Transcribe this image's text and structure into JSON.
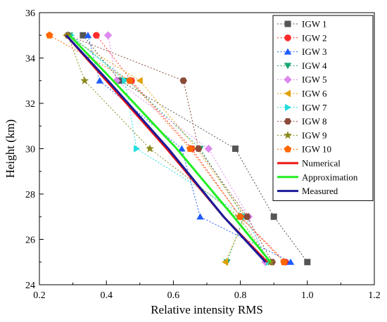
{
  "chart_data": {
    "type": "line",
    "xlabel": "Relative intensity RMS",
    "ylabel": "Height (km)",
    "xlim": [
      0.2,
      1.2
    ],
    "ylim": [
      24,
      36
    ],
    "xticks": [
      "0.2",
      "0.4",
      "0.6",
      "0.8",
      "1.0",
      "1.2"
    ],
    "yticks": [
      "24",
      "26",
      "28",
      "30",
      "32",
      "34",
      "36"
    ],
    "grid": false,
    "legend_position": "top-right",
    "heights": [
      35,
      33,
      30,
      27,
      25
    ],
    "series": [
      {
        "name": "IGW 1",
        "x": [
          0.33,
          0.44,
          0.785,
          0.9,
          1.0
        ],
        "y": [
          35,
          33,
          30,
          27,
          25
        ],
        "color": "#555555",
        "marker": "square"
      },
      {
        "name": "IGW 2",
        "x": [
          0.37,
          0.475,
          0.655,
          0.8,
          0.935
        ],
        "y": [
          35,
          33,
          30,
          27,
          25
        ],
        "color": "#ff2b2b",
        "marker": "circle"
      },
      {
        "name": "IGW 3",
        "x": [
          0.345,
          0.38,
          0.625,
          0.68,
          0.95
        ],
        "y": [
          35,
          33,
          30,
          27,
          25
        ],
        "color": "#1e5bff",
        "marker": "triangle-up"
      },
      {
        "name": "IGW 4",
        "x": [
          0.29,
          0.465,
          0.68,
          0.81,
          0.76
        ],
        "y": [
          35,
          33,
          30,
          27,
          25
        ],
        "color": "#17a870",
        "marker": "triangle-down"
      },
      {
        "name": "IGW 5",
        "x": [
          0.405,
          0.43,
          0.705,
          0.825,
          0.875
        ],
        "y": [
          35,
          33,
          30,
          27,
          25
        ],
        "color": "#dd88ee",
        "marker": "diamond"
      },
      {
        "name": "IGW 6",
        "x": [
          0.28,
          0.5,
          0.67,
          0.815,
          0.755
        ],
        "y": [
          35,
          33,
          30,
          27,
          25
        ],
        "color": "#e0a000",
        "marker": "triangle-left"
      },
      {
        "name": "IGW 7",
        "x": [
          0.295,
          0.455,
          0.49,
          0.815,
          0.885
        ],
        "y": [
          35,
          33,
          30,
          27,
          25
        ],
        "color": "#22dddd",
        "marker": "triangle-right"
      },
      {
        "name": "IGW 8",
        "x": [
          0.285,
          0.63,
          0.675,
          0.82,
          0.895
        ],
        "y": [
          35,
          33,
          30,
          27,
          25
        ],
        "color": "#8b4a3a",
        "marker": "hexagon"
      },
      {
        "name": "IGW 9",
        "x": [
          0.285,
          0.335,
          0.53,
          0.795,
          0.89
        ],
        "y": [
          35,
          33,
          30,
          27,
          25
        ],
        "color": "#8a8a1a",
        "marker": "star"
      },
      {
        "name": "IGW 10",
        "x": [
          0.23,
          0.47,
          0.65,
          0.8,
          0.93
        ],
        "y": [
          35,
          33,
          30,
          27,
          25
        ],
        "color": "#ff6600",
        "marker": "pentagon"
      },
      {
        "name": "Numerical",
        "x": [
          0.28,
          0.4,
          0.58,
          0.75,
          0.88
        ],
        "y": [
          35,
          33,
          30,
          27,
          25
        ],
        "color": "#ee1111",
        "marker": "none"
      },
      {
        "name": "Approximation",
        "x": [
          0.29,
          0.42,
          0.61,
          0.78,
          0.89
        ],
        "y": [
          35,
          33,
          30,
          27,
          25
        ],
        "color": "#22ee22",
        "marker": "none"
      },
      {
        "name": "Measured",
        "x": [
          0.28,
          0.405,
          0.585,
          0.75,
          0.875
        ],
        "y": [
          35,
          33,
          30,
          27,
          25
        ],
        "color": "#1a1a99",
        "marker": "none"
      }
    ]
  }
}
